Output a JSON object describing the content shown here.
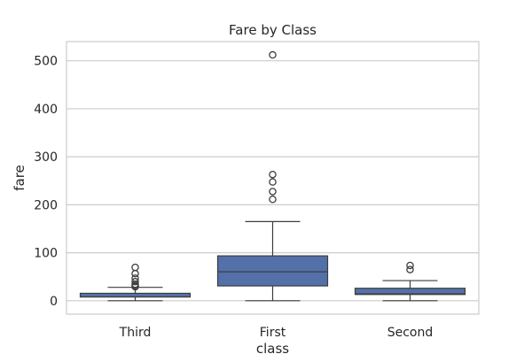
{
  "chart_data": {
    "type": "box",
    "title": "Fare by Class",
    "xlabel": "class",
    "ylabel": "fare",
    "categories": [
      "Third",
      "First",
      "Second"
    ],
    "y_ticks": [
      0,
      100,
      200,
      300,
      400,
      500
    ],
    "y_tick_labels": [
      "0",
      "100",
      "200",
      "300",
      "400",
      "500"
    ],
    "ylim": [
      -28,
      540
    ],
    "grid": "horizontal",
    "box_color": "#5470a8",
    "edge_color": "#3d3d3d",
    "boxes": [
      {
        "category": "Third",
        "whisker_low": 0,
        "q1": 7.75,
        "median": 8.05,
        "q3": 15.5,
        "whisker_high": 27.9,
        "outliers": [
          29.1,
          31.3,
          34.4,
          39.7,
          46.9,
          56.5,
          69.55
        ]
      },
      {
        "category": "First",
        "whisker_low": 0,
        "q1": 30.9,
        "median": 60.3,
        "q3": 93.5,
        "whisker_high": 164.9,
        "outliers": [
          211.3,
          227.5,
          247.5,
          263,
          512.3
        ]
      },
      {
        "category": "Second",
        "whisker_low": 0,
        "q1": 13,
        "median": 14.25,
        "q3": 26,
        "whisker_high": 42,
        "outliers": [
          65,
          73.5
        ]
      }
    ]
  }
}
